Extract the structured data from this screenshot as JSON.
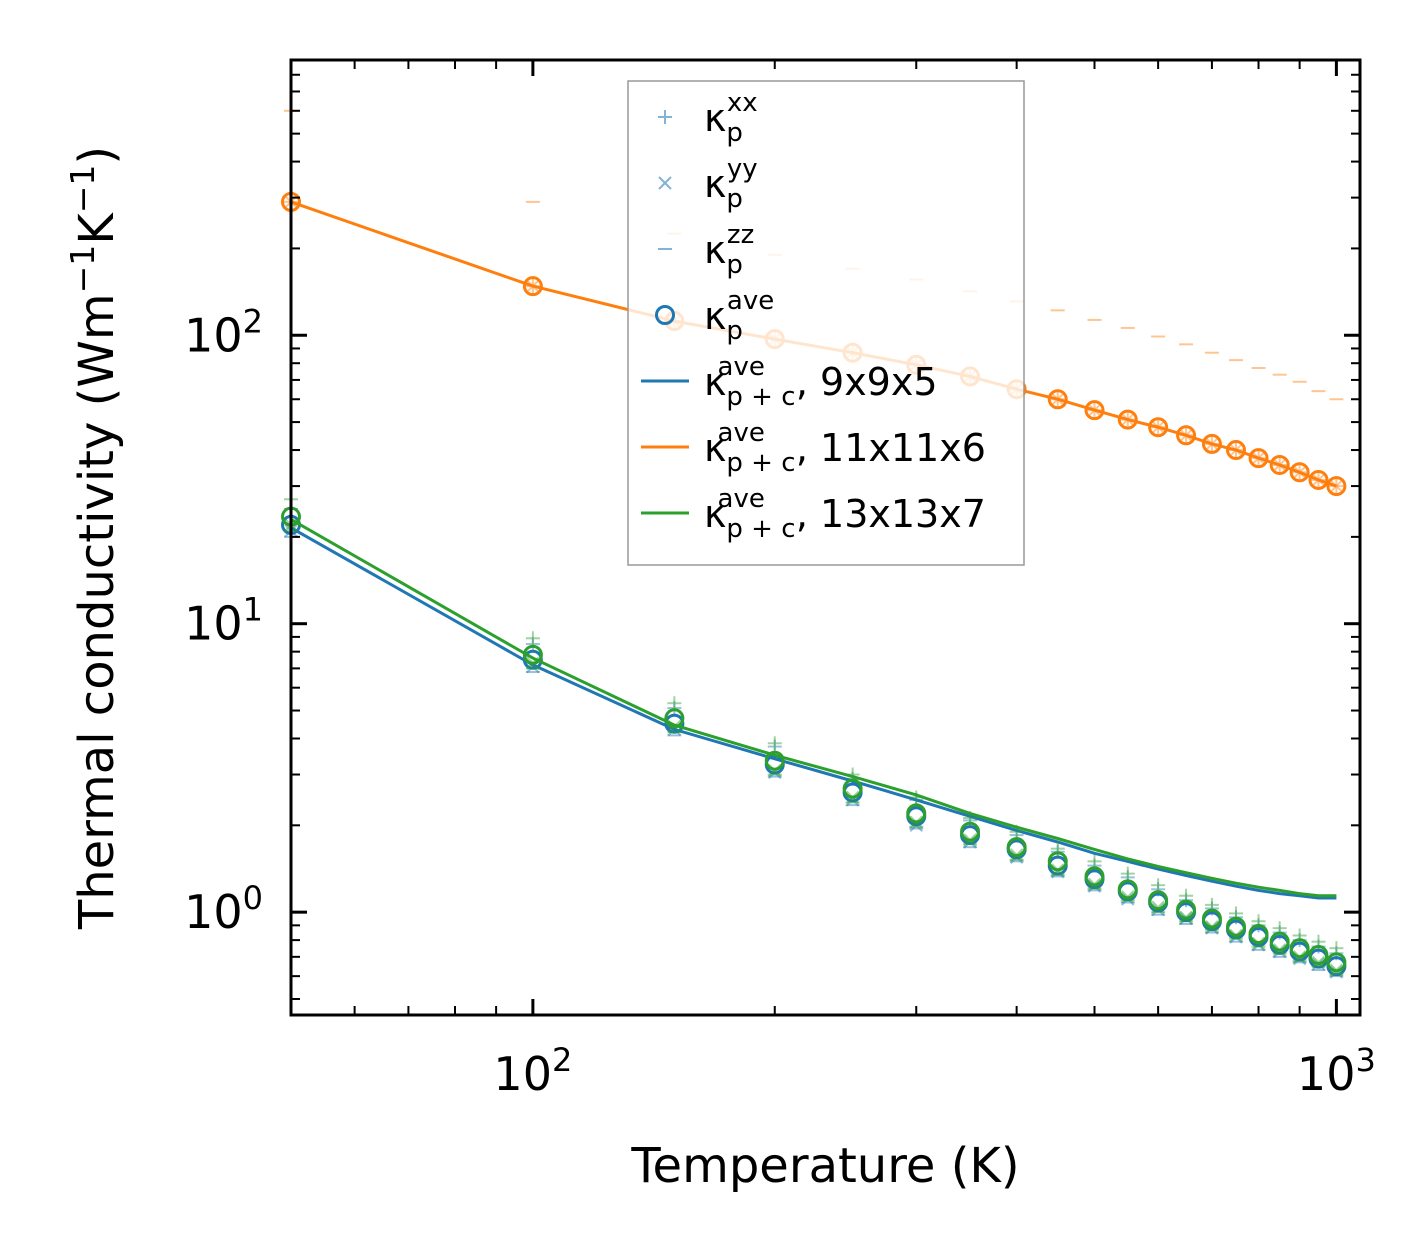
{
  "chart_data": {
    "type": "scatter",
    "x_scale": "log",
    "y_scale": "log",
    "xlabel": "Temperature (K)",
    "ylabel": {
      "prefix": "Thermal conductivity (Wm",
      "sup1": "−1",
      "mid": "K",
      "sup2": "−1",
      "suffix": ")"
    },
    "xlim": [
      50,
      1070
    ],
    "ylim": [
      0.44,
      900
    ],
    "x_ticks": [
      {
        "value": 100,
        "base": "10",
        "exp": "2"
      },
      {
        "value": 1000,
        "base": "10",
        "exp": "3"
      }
    ],
    "y_ticks": [
      {
        "value": 1,
        "base": "10",
        "exp": "0"
      },
      {
        "value": 10,
        "base": "10",
        "exp": "1"
      },
      {
        "value": 100,
        "base": "10",
        "exp": "2"
      }
    ],
    "x": [
      50,
      100,
      150,
      200,
      250,
      300,
      350,
      400,
      450,
      500,
      550,
      600,
      650,
      700,
      750,
      800,
      850,
      900,
      950,
      1000
    ],
    "series": [
      {
        "name": "9x9x5",
        "color": "#1f77b4",
        "kp_ave": [
          22.0,
          7.5,
          4.5,
          3.25,
          2.6,
          2.15,
          1.85,
          1.65,
          1.45,
          1.3,
          1.18,
          1.08,
          1.0,
          0.93,
          0.87,
          0.82,
          0.77,
          0.73,
          0.69,
          0.65
        ],
        "kpc_ave": [
          21.5,
          7.2,
          4.3,
          3.4,
          2.85,
          2.45,
          2.15,
          1.92,
          1.75,
          1.6,
          1.5,
          1.41,
          1.34,
          1.28,
          1.23,
          1.19,
          1.16,
          1.14,
          1.12,
          1.12
        ],
        "kp_xx": [
          25.0,
          8.5,
          5.1,
          3.75,
          2.9,
          2.45,
          2.08,
          1.85,
          1.62,
          1.45,
          1.32,
          1.2,
          1.1,
          1.03,
          0.96,
          0.9,
          0.85,
          0.8,
          0.76,
          0.72
        ],
        "kp_yy": [
          21.0,
          7.1,
          4.3,
          3.05,
          2.45,
          2.0,
          1.75,
          1.55,
          1.38,
          1.23,
          1.11,
          1.02,
          0.95,
          0.88,
          0.82,
          0.77,
          0.73,
          0.69,
          0.66,
          0.62
        ],
        "kp_zz": [
          20.0,
          6.8,
          4.1,
          2.95,
          2.35,
          1.95,
          1.68,
          1.5,
          1.33,
          1.19,
          1.08,
          0.98,
          0.91,
          0.85,
          0.79,
          0.74,
          0.7,
          0.67,
          0.63,
          0.6
        ]
      },
      {
        "name": "11x11x6",
        "color": "#ff7f0e",
        "kp_ave": [
          290,
          148,
          112,
          97,
          87,
          79,
          72,
          65,
          60,
          55,
          51,
          48,
          45,
          42,
          40,
          37.5,
          35.5,
          33.5,
          31.5,
          30
        ],
        "kpc_ave": [
          290,
          148,
          112,
          97,
          87,
          79,
          72,
          65,
          60,
          55,
          51,
          48,
          45,
          42,
          40,
          37.5,
          35.5,
          33.5,
          31.5,
          30
        ],
        "kp_xx": [
          290,
          148,
          112,
          97,
          87,
          79,
          72,
          65,
          60,
          55,
          51,
          48,
          45,
          42,
          40,
          37.5,
          35.5,
          33.5,
          31.5,
          30
        ],
        "kp_yy": [
          290,
          148,
          112,
          97,
          87,
          79,
          72,
          65,
          60,
          55,
          51,
          48,
          45,
          42,
          40,
          37.5,
          35.5,
          33.5,
          31.5,
          30
        ],
        "kp_zz": [
          600,
          290,
          225,
          190,
          170,
          156,
          142,
          131,
          122,
          113,
          106,
          99,
          93,
          87,
          82,
          77,
          73,
          69,
          64,
          60
        ]
      },
      {
        "name": "13x13x7",
        "color": "#2ca02c",
        "kp_ave": [
          23.5,
          7.8,
          4.7,
          3.35,
          2.68,
          2.2,
          1.9,
          1.68,
          1.5,
          1.33,
          1.2,
          1.1,
          1.02,
          0.95,
          0.89,
          0.84,
          0.79,
          0.75,
          0.71,
          0.67
        ],
        "kpc_ave": [
          23.0,
          7.6,
          4.45,
          3.5,
          2.95,
          2.55,
          2.2,
          1.97,
          1.8,
          1.65,
          1.53,
          1.44,
          1.37,
          1.31,
          1.26,
          1.22,
          1.19,
          1.16,
          1.14,
          1.14
        ],
        "kp_xx": [
          27.0,
          8.9,
          5.3,
          3.85,
          3.0,
          2.5,
          2.12,
          1.9,
          1.66,
          1.5,
          1.36,
          1.24,
          1.14,
          1.06,
          0.99,
          0.93,
          0.88,
          0.83,
          0.79,
          0.75
        ],
        "kp_yy": [
          22.0,
          7.3,
          4.4,
          3.1,
          2.5,
          2.05,
          1.78,
          1.58,
          1.4,
          1.25,
          1.13,
          1.04,
          0.96,
          0.89,
          0.83,
          0.78,
          0.74,
          0.7,
          0.67,
          0.63
        ],
        "kp_zz": [
          21.0,
          7.0,
          4.2,
          3.0,
          2.4,
          1.98,
          1.72,
          1.52,
          1.35,
          1.21,
          1.1,
          1.0,
          0.93,
          0.87,
          0.81,
          0.76,
          0.72,
          0.68,
          0.65,
          0.61
        ]
      }
    ],
    "legend": {
      "position": "top-center",
      "entries": [
        {
          "marker": "plus",
          "color": "#1f77b4",
          "base": "κ",
          "sub": "p",
          "sup": "xx",
          "suffix": ""
        },
        {
          "marker": "x",
          "color": "#1f77b4",
          "base": "κ",
          "sub": "p",
          "sup": "yy",
          "suffix": ""
        },
        {
          "marker": "dash",
          "color": "#1f77b4",
          "base": "κ",
          "sub": "p",
          "sup": "zz",
          "suffix": ""
        },
        {
          "marker": "circle",
          "color": "#1f77b4",
          "base": "κ",
          "sub": "p",
          "sup": "ave",
          "suffix": ""
        },
        {
          "marker": "line",
          "color": "#1f77b4",
          "base": "κ",
          "sub": "p + c",
          "sup": "ave",
          "suffix": ", 9x9x5"
        },
        {
          "marker": "line",
          "color": "#ff7f0e",
          "base": "κ",
          "sub": "p + c",
          "sup": "ave",
          "suffix": ", 11x11x6"
        },
        {
          "marker": "line",
          "color": "#2ca02c",
          "base": "κ",
          "sub": "p + c",
          "sup": "ave",
          "suffix": ", 13x13x7"
        }
      ]
    }
  }
}
